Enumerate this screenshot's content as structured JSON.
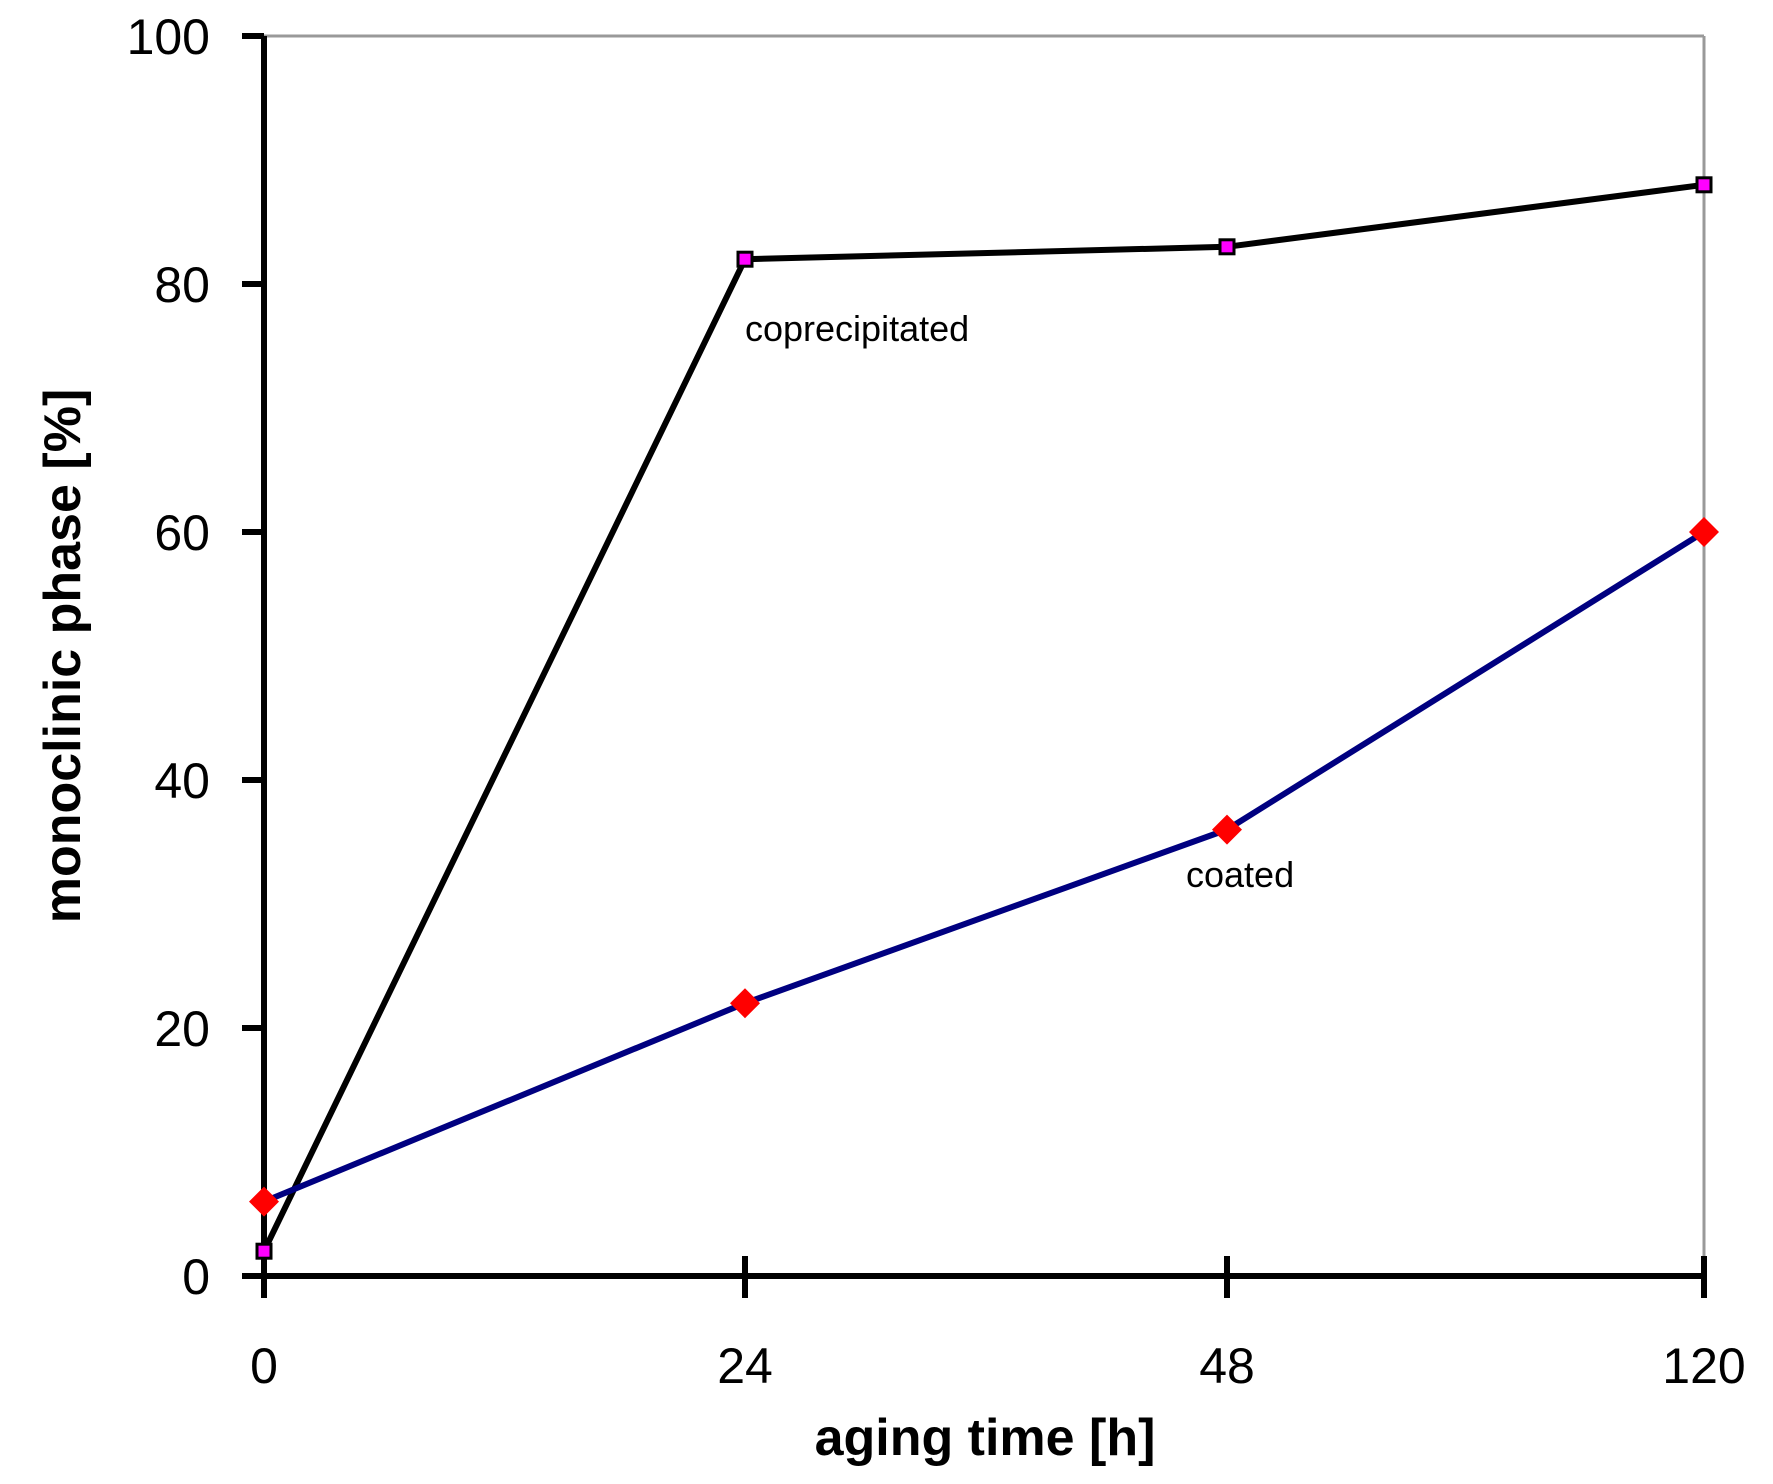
{
  "chart_data": {
    "type": "line",
    "title": "",
    "xlabel": "aging time [h]",
    "ylabel": "monoclinic phase [%]",
    "categories": [
      "0",
      "24",
      "48",
      "120"
    ],
    "ylim": [
      0,
      100
    ],
    "yticks": [
      0,
      20,
      40,
      60,
      80,
      100
    ],
    "grid": false,
    "series": [
      {
        "name": "coprecipitated",
        "values": [
          2,
          82,
          83,
          88
        ],
        "line_color": "#000000",
        "marker": "square",
        "marker_color": "#ff00ff"
      },
      {
        "name": "coated",
        "values": [
          6,
          22,
          36,
          60
        ],
        "line_color": "#000080",
        "marker": "diamond",
        "marker_color": "#ff0000"
      }
    ],
    "annotations": [
      {
        "text": "coprecipitated",
        "series": "coprecipitated"
      },
      {
        "text": "coated",
        "series": "coated"
      }
    ]
  }
}
